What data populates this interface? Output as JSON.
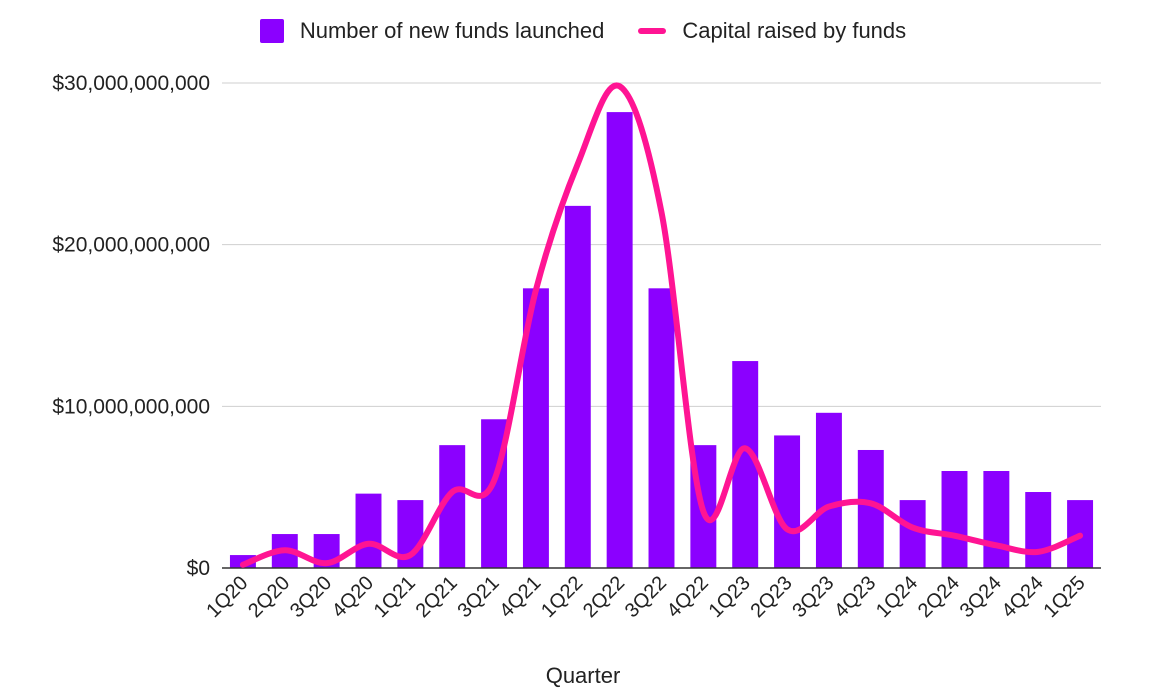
{
  "chart_data": {
    "type": "bar",
    "xlabel": "Quarter",
    "categories": [
      "1Q20",
      "2Q20",
      "3Q20",
      "4Q20",
      "1Q21",
      "2Q21",
      "3Q21",
      "4Q21",
      "1Q22",
      "2Q22",
      "3Q22",
      "4Q22",
      "1Q23",
      "2Q23",
      "3Q23",
      "4Q23",
      "1Q24",
      "2Q24",
      "3Q24",
      "4Q24",
      "1Q25"
    ],
    "ylim": [
      0,
      30000000000
    ],
    "yticks": [
      {
        "value": 0,
        "label": "$0"
      },
      {
        "value": 10000000000,
        "label": "$10,000,000,000"
      },
      {
        "value": 20000000000,
        "label": "$20,000,000,000"
      },
      {
        "value": 30000000000,
        "label": "$30,000,000,000"
      }
    ],
    "legend_position": "top-center",
    "grid": true,
    "series": [
      {
        "name": "Number of new funds launched",
        "type": "bar",
        "color": "#8b00ff",
        "values": [
          0.8,
          2.1,
          2.1,
          4.6,
          4.2,
          7.6,
          9.2,
          17.3,
          22.4,
          28.2,
          17.3,
          7.6,
          12.8,
          8.2,
          9.6,
          7.3,
          4.2,
          6.0,
          6.0,
          4.7,
          4.2
        ],
        "scale_note": "relative bar heights expressed in billions on the shared axis"
      },
      {
        "name": "Capital raised by funds",
        "type": "line",
        "color": "#ff1493",
        "values": [
          0.2,
          1.1,
          0.3,
          1.5,
          0.8,
          4.7,
          5.4,
          17.2,
          25.0,
          29.8,
          22.0,
          3.5,
          7.4,
          2.4,
          3.8,
          4.0,
          2.5,
          2.0,
          1.4,
          1.0,
          2.0
        ],
        "unit": "billions USD"
      }
    ]
  }
}
